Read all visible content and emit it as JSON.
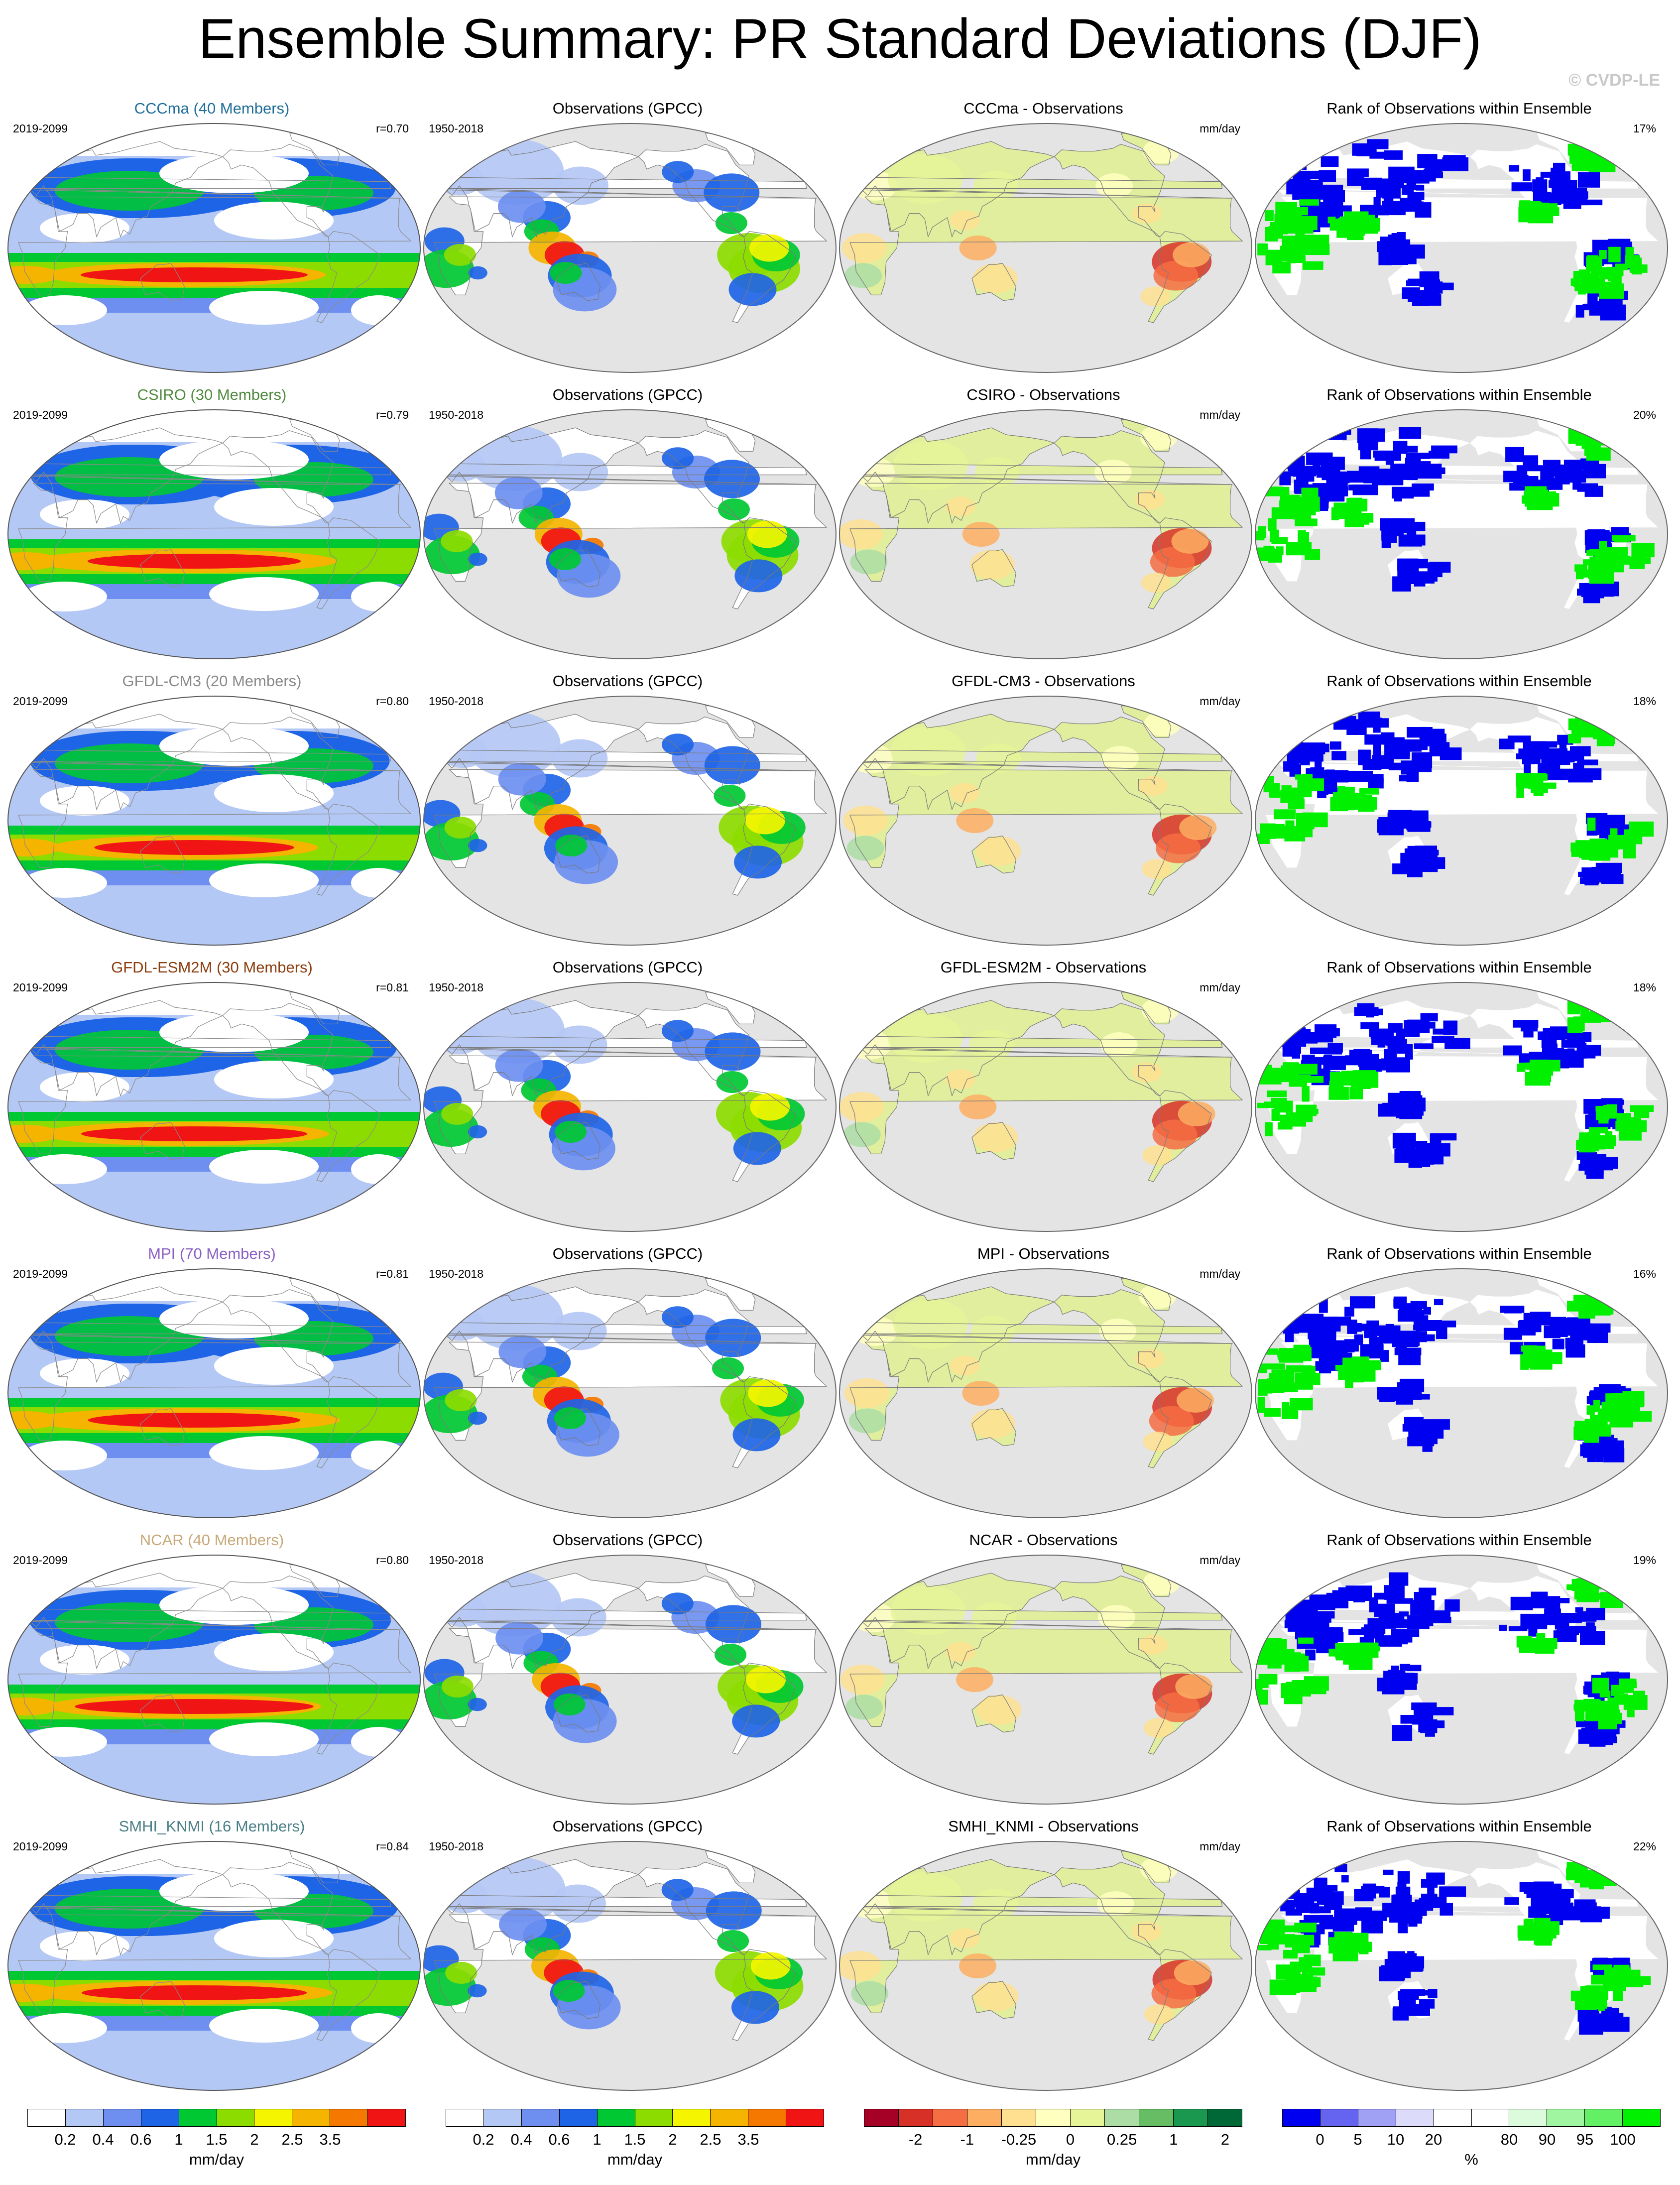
{
  "title": "Ensemble Summary: PR Standard Deviations (DJF)",
  "copyright": "© CVDP-LE",
  "rows": [
    {
      "model_title": "CCCma (40 Members)",
      "title_color": "#1f6e99",
      "years": "2019-2099",
      "r": "r=0.70",
      "obs_title": "Observations (GPCC)",
      "obs_years": "1950-2018",
      "diff_title": "CCCma - Observations",
      "diff_unit": "mm/day",
      "rank_title": "Rank of Observations within Ensemble",
      "rank_pct": "17%"
    },
    {
      "model_title": "CSIRO (30 Members)",
      "title_color": "#4f8a3f",
      "years": "2019-2099",
      "r": "r=0.79",
      "obs_title": "Observations (GPCC)",
      "obs_years": "1950-2018",
      "diff_title": "CSIRO - Observations",
      "diff_unit": "mm/day",
      "rank_title": "Rank of Observations within Ensemble",
      "rank_pct": "20%"
    },
    {
      "model_title": "GFDL-CM3 (20 Members)",
      "title_color": "#8a8a8a",
      "years": "2019-2099",
      "r": "r=0.80",
      "obs_title": "Observations (GPCC)",
      "obs_years": "1950-2018",
      "diff_title": "GFDL-CM3 - Observations",
      "diff_unit": "mm/day",
      "rank_title": "Rank of Observations within Ensemble",
      "rank_pct": "18%"
    },
    {
      "model_title": "GFDL-ESM2M (30 Members)",
      "title_color": "#8b3d0e",
      "years": "2019-2099",
      "r": "r=0.81",
      "obs_title": "Observations (GPCC)",
      "obs_years": "1950-2018",
      "diff_title": "GFDL-ESM2M - Observations",
      "diff_unit": "mm/day",
      "rank_title": "Rank of Observations within Ensemble",
      "rank_pct": "18%"
    },
    {
      "model_title": "MPI (70 Members)",
      "title_color": "#8a5fc4",
      "years": "2019-2099",
      "r": "r=0.81",
      "obs_title": "Observations (GPCC)",
      "obs_years": "1950-2018",
      "diff_title": "MPI - Observations",
      "diff_unit": "mm/day",
      "rank_title": "Rank of Observations within Ensemble",
      "rank_pct": "16%"
    },
    {
      "model_title": "NCAR (40 Members)",
      "title_color": "#c8a878",
      "years": "2019-2099",
      "r": "r=0.80",
      "obs_title": "Observations (GPCC)",
      "obs_years": "1950-2018",
      "diff_title": "NCAR - Observations",
      "diff_unit": "mm/day",
      "rank_title": "Rank of Observations within Ensemble",
      "rank_pct": "19%"
    },
    {
      "model_title": "SMHI_KNMI (16 Members)",
      "title_color": "#4a7f86",
      "years": "2019-2099",
      "r": "r=0.84",
      "obs_title": "Observations (GPCC)",
      "obs_years": "1950-2018",
      "diff_title": "SMHI_KNMI - Observations",
      "diff_unit": "mm/day",
      "rank_title": "Rank of Observations within Ensemble",
      "rank_pct": "22%"
    }
  ],
  "colorbars": [
    {
      "unit": "mm/day",
      "ticks": [
        "0.2",
        "0.4",
        "0.6",
        "1",
        "1.5",
        "2",
        "2.5",
        "3.5"
      ],
      "colors": [
        "#ffffff",
        "#b4c8f5",
        "#6e8ff0",
        "#1e64e6",
        "#00c832",
        "#8cdc00",
        "#f5f500",
        "#f5b400",
        "#f57800",
        "#f01414"
      ]
    },
    {
      "unit": "mm/day",
      "ticks": [
        "0.2",
        "0.4",
        "0.6",
        "1",
        "1.5",
        "2",
        "2.5",
        "3.5"
      ],
      "colors": [
        "#ffffff",
        "#b4c8f5",
        "#6e8ff0",
        "#1e64e6",
        "#00c832",
        "#8cdc00",
        "#f5f500",
        "#f5b400",
        "#f57800",
        "#f01414"
      ]
    },
    {
      "unit": "mm/day",
      "ticks": [
        "-2",
        "-1",
        "-0.25",
        "0",
        "0.25",
        "1",
        "2"
      ],
      "colors": [
        "#a50026",
        "#d73027",
        "#f46d43",
        "#fdae61",
        "#fee090",
        "#ffffbf",
        "#e6f598",
        "#abdda4",
        "#66bd63",
        "#1a9850",
        "#006837"
      ]
    },
    {
      "unit": "%",
      "ticks": [
        "0",
        "5",
        "10",
        "20",
        "80",
        "90",
        "95",
        "100"
      ],
      "colors": [
        "#0000f0",
        "#6464f0",
        "#a0a0f5",
        "#dcdcfa",
        "#ffffff",
        "#ffffff",
        "#dcfadc",
        "#a0f5a0",
        "#64f064",
        "#00f000"
      ]
    }
  ]
}
